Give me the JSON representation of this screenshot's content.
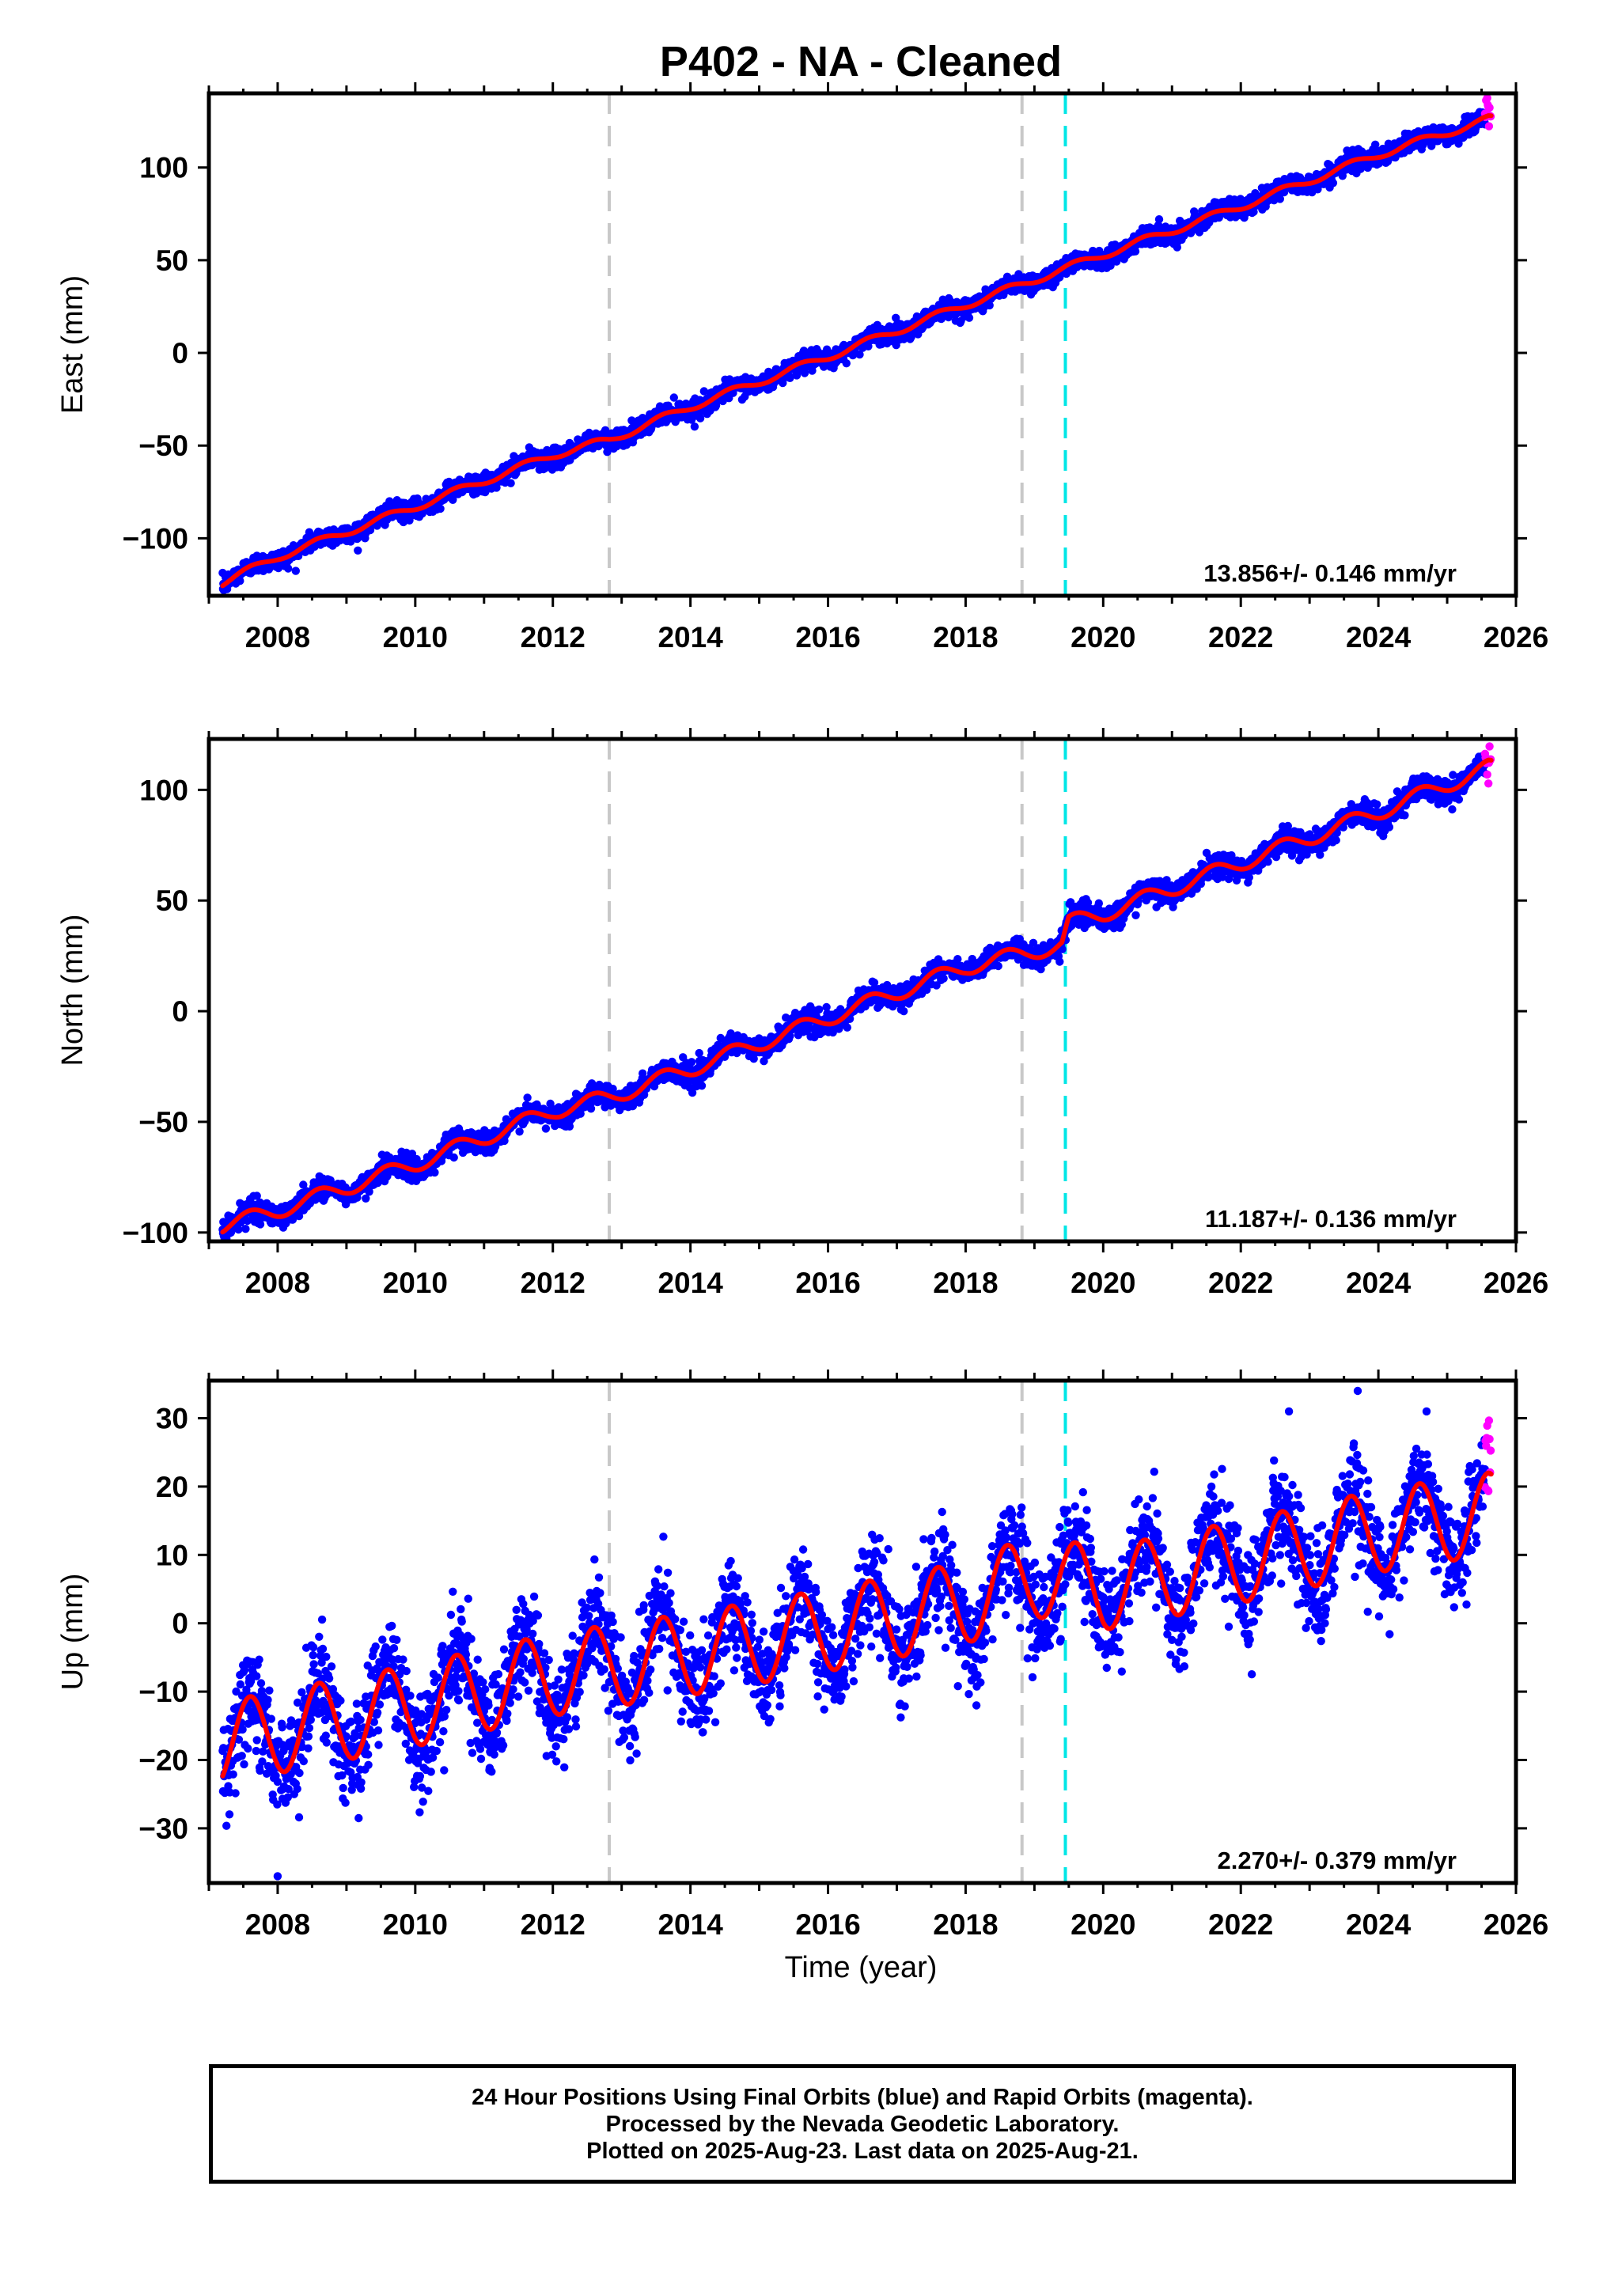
{
  "title": "P402  - NA - Cleaned",
  "xlabel": "Time (year)",
  "footer": {
    "line1": "24 Hour Positions Using Final Orbits (blue) and Rapid Orbits (magenta).",
    "line2": "Processed by the Nevada Geodetic Laboratory.",
    "line3": "Plotted on 2025-Aug-23. Last data on 2025-Aug-21."
  },
  "colors": {
    "final_orbits": "#0000ff",
    "rapid_orbits": "#ff00ff",
    "model_fit": "#ff0000",
    "event_gray": "#c8c8c8",
    "event_cyan": "#00e6e6"
  },
  "chart_data": [
    {
      "type": "scatter",
      "ylabel": "East (mm)",
      "rate_label": "13.856+/- 0.146 mm/yr",
      "xlim": [
        2007.0,
        2026.0
      ],
      "ylim": [
        -131,
        140
      ],
      "xticks": [
        2008,
        2010,
        2012,
        2014,
        2016,
        2018,
        2020,
        2022,
        2024,
        2026
      ],
      "yticks": [
        -100,
        -50,
        0,
        50,
        100
      ],
      "vlines": [
        {
          "x": 2012.82,
          "style": "gray-dashed"
        },
        {
          "x": 2018.82,
          "style": "gray-dashed"
        },
        {
          "x": 2019.45,
          "style": "cyan-dashed"
        }
      ],
      "data_range": [
        2007.2,
        2025.64
      ],
      "fit_points": [
        [
          2007.2,
          -124
        ],
        [
          2008.0,
          -110
        ],
        [
          2010.0,
          -83
        ],
        [
          2012.0,
          -55
        ],
        [
          2012.82,
          -47
        ],
        [
          2014.0,
          -29
        ],
        [
          2016.0,
          -2
        ],
        [
          2018.0,
          26
        ],
        [
          2018.82,
          37
        ],
        [
          2020.0,
          53
        ],
        [
          2022.0,
          79
        ],
        [
          2024.0,
          107
        ],
        [
          2025.6,
          126
        ]
      ],
      "seasonal_amplitude": 2.0,
      "scatter_spread": 2.5,
      "rapid_range": [
        2025.55,
        2025.64
      ]
    },
    {
      "type": "scatter",
      "ylabel": "North (mm)",
      "rate_label": "11.187+/- 0.136 mm/yr",
      "xlim": [
        2007.0,
        2026.0
      ],
      "ylim": [
        -104,
        123
      ],
      "xticks": [
        2008,
        2010,
        2012,
        2014,
        2016,
        2018,
        2020,
        2022,
        2024,
        2026
      ],
      "yticks": [
        -100,
        -50,
        0,
        50,
        100
      ],
      "vlines": [
        {
          "x": 2012.82,
          "style": "gray-dashed"
        },
        {
          "x": 2018.82,
          "style": "gray-dashed"
        },
        {
          "x": 2019.45,
          "style": "cyan-dashed"
        }
      ],
      "data_range": [
        2007.2,
        2025.64
      ],
      "fit_points": [
        [
          2007.2,
          -97
        ],
        [
          2008.0,
          -90
        ],
        [
          2010.0,
          -69
        ],
        [
          2012.0,
          -45
        ],
        [
          2012.82,
          -39
        ],
        [
          2014.0,
          -26
        ],
        [
          2016.0,
          -3
        ],
        [
          2018.0,
          20
        ],
        [
          2019.4,
          30
        ],
        [
          2019.5,
          40
        ],
        [
          2020.0,
          44
        ],
        [
          2022.0,
          67
        ],
        [
          2024.0,
          90
        ],
        [
          2025.6,
          110
        ]
      ],
      "seasonal_amplitude": 3.5,
      "scatter_spread": 2.5,
      "rapid_range": [
        2025.55,
        2025.64
      ]
    },
    {
      "type": "scatter",
      "ylabel": "Up (mm)",
      "rate_label": "2.270+/- 0.379 mm/yr",
      "xlim": [
        2007.0,
        2026.0
      ],
      "ylim": [
        -38,
        35.5
      ],
      "xticks": [
        2008,
        2010,
        2012,
        2014,
        2016,
        2018,
        2020,
        2022,
        2024,
        2026
      ],
      "yticks": [
        -30,
        -20,
        -10,
        0,
        10,
        20,
        30
      ],
      "vlines": [
        {
          "x": 2012.82,
          "style": "gray-dashed"
        },
        {
          "x": 2018.82,
          "style": "gray-dashed"
        },
        {
          "x": 2019.45,
          "style": "cyan-dashed"
        }
      ],
      "data_range": [
        2007.2,
        2025.64
      ],
      "fit_points": [
        [
          2007.2,
          -17.5
        ],
        [
          2010.0,
          -12
        ],
        [
          2012.0,
          -7.5
        ],
        [
          2014.0,
          -4.5
        ],
        [
          2016.0,
          -1
        ],
        [
          2018.0,
          3
        ],
        [
          2019.0,
          7
        ],
        [
          2020.0,
          5
        ],
        [
          2022.0,
          9
        ],
        [
          2024.0,
          13.5
        ],
        [
          2025.6,
          16
        ]
      ],
      "seasonal_amplitude": 6.0,
      "scatter_spread": 3.6,
      "rapid_range": [
        2025.55,
        2025.64
      ],
      "outliers": [
        [
          2008.0,
          -37
        ],
        [
          2023.7,
          34
        ],
        [
          2024.7,
          31
        ],
        [
          2022.7,
          31
        ]
      ]
    }
  ]
}
